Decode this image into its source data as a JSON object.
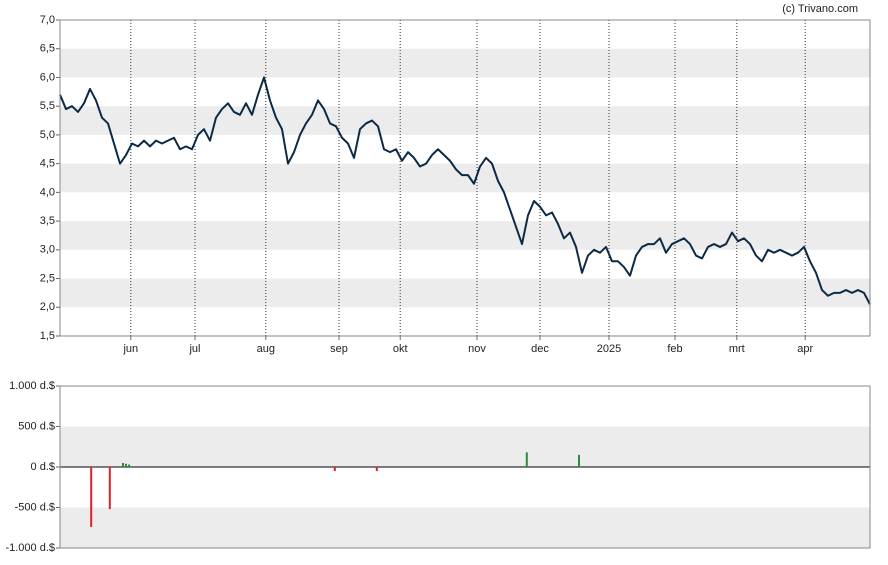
{
  "credit": "(c) Trivano.com",
  "chart_data": [
    {
      "type": "line",
      "xlim": [
        0,
        135
      ],
      "xticks": [
        {
          "value": 11.8,
          "label": "jun"
        },
        {
          "value": 22.5,
          "label": "jul"
        },
        {
          "value": 34.3,
          "label": "aug"
        },
        {
          "value": 46.5,
          "label": "sep"
        },
        {
          "value": 56.7,
          "label": "okt"
        },
        {
          "value": 69.5,
          "label": "nov"
        },
        {
          "value": 80,
          "label": "dec"
        },
        {
          "value": 91.5,
          "label": "2025"
        },
        {
          "value": 102.5,
          "label": "feb"
        },
        {
          "value": 112.8,
          "label": "mrt"
        },
        {
          "value": 124.2,
          "label": "apr"
        }
      ],
      "ylim": [
        1.5,
        7
      ],
      "yticks": [
        {
          "value": 1.5,
          "label": "1,5"
        },
        {
          "value": 2,
          "label": "2,0"
        },
        {
          "value": 2.5,
          "label": "2,5"
        },
        {
          "value": 3,
          "label": "3,0"
        },
        {
          "value": 3.5,
          "label": "3,5"
        },
        {
          "value": 4,
          "label": "4,0"
        },
        {
          "value": 4.5,
          "label": "4,5"
        },
        {
          "value": 5,
          "label": "5,0"
        },
        {
          "value": 5.5,
          "label": "5,5"
        },
        {
          "value": 6,
          "label": "6,0"
        },
        {
          "value": 6.5,
          "label": "6,5"
        },
        {
          "value": 7,
          "label": "7,0"
        }
      ],
      "color": "#0d2a45",
      "values": [
        5.7,
        5.45,
        5.5,
        5.4,
        5.55,
        5.8,
        5.6,
        5.3,
        5.2,
        4.85,
        4.5,
        4.65,
        4.85,
        4.8,
        4.9,
        4.8,
        4.9,
        4.85,
        4.9,
        4.95,
        4.75,
        4.8,
        4.75,
        5.0,
        5.1,
        4.9,
        5.3,
        5.45,
        5.55,
        5.4,
        5.35,
        5.55,
        5.35,
        5.7,
        6.0,
        5.6,
        5.3,
        5.1,
        4.5,
        4.7,
        5.0,
        5.2,
        5.35,
        5.6,
        5.45,
        5.2,
        5.15,
        4.95,
        4.85,
        4.6,
        5.1,
        5.2,
        5.25,
        5.15,
        4.75,
        4.7,
        4.75,
        4.55,
        4.7,
        4.6,
        4.45,
        4.5,
        4.65,
        4.75,
        4.65,
        4.55,
        4.4,
        4.3,
        4.3,
        4.15,
        4.45,
        4.6,
        4.5,
        4.2,
        4.0,
        3.7,
        3.4,
        3.1,
        3.6,
        3.85,
        3.75,
        3.6,
        3.65,
        3.45,
        3.2,
        3.3,
        3.05,
        2.6,
        2.9,
        3.0,
        2.95,
        3.05,
        2.8,
        2.8,
        2.7,
        2.55,
        2.9,
        3.05,
        3.1,
        3.1,
        3.2,
        2.95,
        3.1,
        3.15,
        3.2,
        3.1,
        2.9,
        2.85,
        3.05,
        3.1,
        3.05,
        3.1,
        3.3,
        3.15,
        3.2,
        3.1,
        2.9,
        2.8,
        3.0,
        2.95,
        3.0,
        2.95,
        2.9,
        2.95,
        3.05,
        2.8,
        2.6,
        2.3,
        2.2,
        2.25,
        2.25,
        2.3,
        2.25,
        2.3,
        2.25,
        2.05
      ]
    },
    {
      "type": "bar",
      "xlim": [
        0,
        135
      ],
      "ylim": [
        -1000,
        1000
      ],
      "yticks": [
        {
          "value": -1000,
          "label": "-1.000 d.$"
        },
        {
          "value": -500,
          "label": "-500 d.$"
        },
        {
          "value": 0,
          "label": "0 d.$"
        },
        {
          "value": 500,
          "label": "500 d.$"
        },
        {
          "value": 1000,
          "label": "1.000 d.$"
        }
      ],
      "x": [
        5.2,
        8.3,
        10.5,
        11,
        11.5,
        45.8,
        52.8,
        77.8,
        86.5
      ],
      "values": [
        -740,
        -520,
        50,
        40,
        30,
        -50,
        -50,
        180,
        150
      ],
      "colors": {
        "positive": "#2e8b3e",
        "negative": "#e0202a"
      }
    }
  ]
}
